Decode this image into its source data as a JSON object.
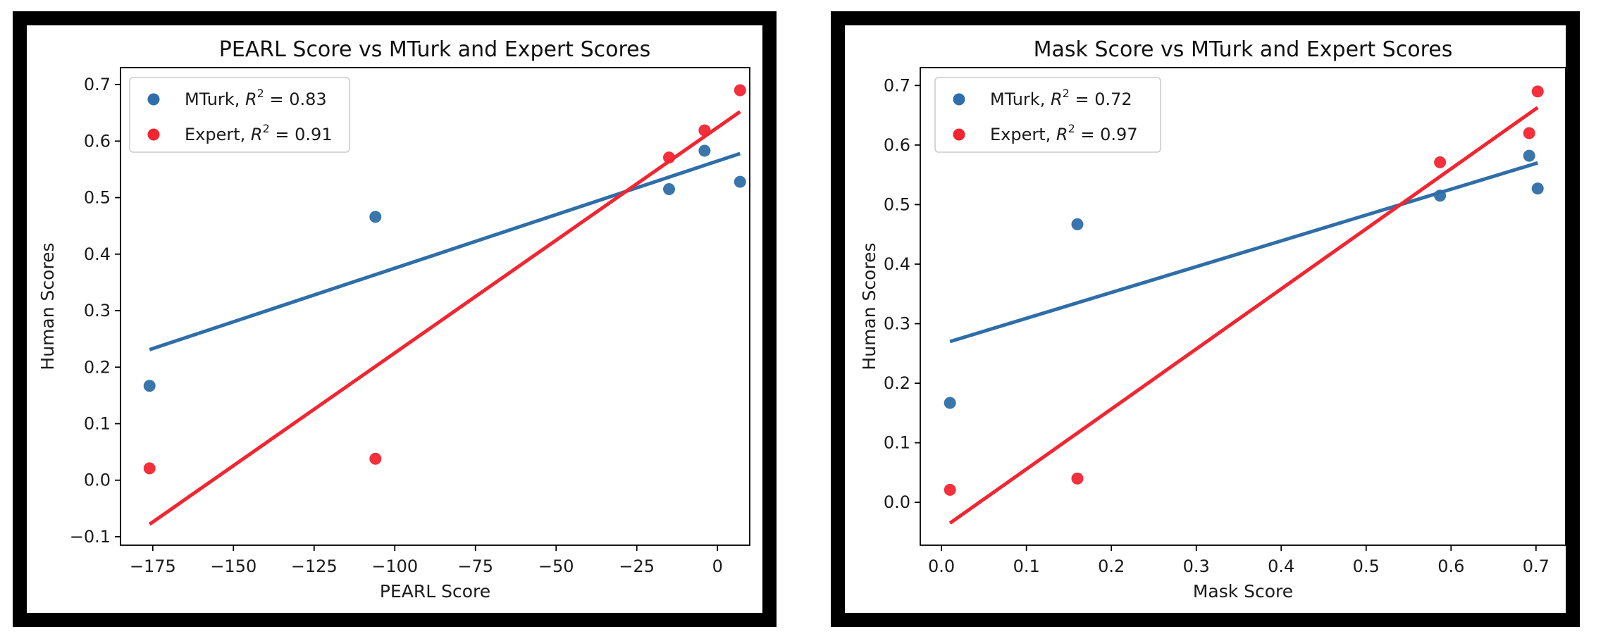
{
  "chart_data": [
    {
      "type": "scatter",
      "title": "PEARL Score vs MTurk and Expert Scores",
      "xlabel": "PEARL Score",
      "ylabel": "Human Scores",
      "xlim": [
        -185,
        10
      ],
      "ylim": [
        -0.115,
        0.73
      ],
      "xticks": [
        -175,
        -150,
        -125,
        -100,
        -75,
        -50,
        -25,
        0
      ],
      "xtick_labels": [
        "−175",
        "−150",
        "−125",
        "−100",
        "−75",
        "−50",
        "−25",
        "0"
      ],
      "yticks": [
        -0.1,
        0.0,
        0.1,
        0.2,
        0.3,
        0.4,
        0.5,
        0.6,
        0.7
      ],
      "ytick_labels": [
        "−0.1",
        "0.0",
        "0.1",
        "0.2",
        "0.3",
        "0.4",
        "0.5",
        "0.6",
        "0.7"
      ],
      "grid": false,
      "legend_position": "top-left",
      "series": [
        {
          "name": "MTurk",
          "r2_label": "MTurk, $R^2$ = 0.83",
          "r2": "0.83",
          "color": "#2f6ea8",
          "x": [
            -176,
            -106,
            -15,
            -4,
            7
          ],
          "y": [
            0.167,
            0.466,
            0.515,
            0.583,
            0.528
          ],
          "fit": [
            [
              -176,
              0.231
            ],
            [
              7,
              0.578
            ]
          ]
        },
        {
          "name": "Expert",
          "r2_label": "Expert, $R^2$ = 0.91",
          "r2": "0.91",
          "color": "#f22530",
          "x": [
            -176,
            -106,
            -15,
            -4,
            7
          ],
          "y": [
            0.021,
            0.038,
            0.571,
            0.619,
            0.69
          ],
          "fit": [
            [
              -176,
              -0.078
            ],
            [
              7,
              0.652
            ]
          ]
        }
      ]
    },
    {
      "type": "scatter",
      "title": "Mask Score vs MTurk and Expert Scores",
      "xlabel": "Mask Score",
      "ylabel": "Human Scores",
      "xlim": [
        -0.025,
        0.735
      ],
      "ylim": [
        -0.072,
        0.73
      ],
      "xticks": [
        0.0,
        0.1,
        0.2,
        0.3,
        0.4,
        0.5,
        0.6,
        0.7
      ],
      "xtick_labels": [
        "0.0",
        "0.1",
        "0.2",
        "0.3",
        "0.4",
        "0.5",
        "0.6",
        "0.7"
      ],
      "yticks": [
        0.0,
        0.1,
        0.2,
        0.3,
        0.4,
        0.5,
        0.6,
        0.7
      ],
      "ytick_labels": [
        "0.0",
        "0.1",
        "0.2",
        "0.3",
        "0.4",
        "0.5",
        "0.6",
        "0.7"
      ],
      "grid": false,
      "legend_position": "top-left",
      "series": [
        {
          "name": "MTurk",
          "r2_label": "MTurk, $R^2$ = 0.72",
          "r2": "0.72",
          "color": "#2f6ea8",
          "x": [
            0.01,
            0.16,
            0.587,
            0.692,
            0.702
          ],
          "y": [
            0.167,
            0.467,
            0.515,
            0.582,
            0.527
          ],
          "fit": [
            [
              0.01,
              0.27
            ],
            [
              0.702,
              0.57
            ]
          ]
        },
        {
          "name": "Expert",
          "r2_label": "Expert, $R^2$ = 0.97",
          "r2": "0.97",
          "color": "#f22530",
          "x": [
            0.01,
            0.16,
            0.587,
            0.692,
            0.702
          ],
          "y": [
            0.021,
            0.04,
            0.571,
            0.62,
            0.69
          ],
          "fit": [
            [
              0.01,
              -0.035
            ],
            [
              0.702,
              0.663
            ]
          ]
        }
      ]
    }
  ]
}
